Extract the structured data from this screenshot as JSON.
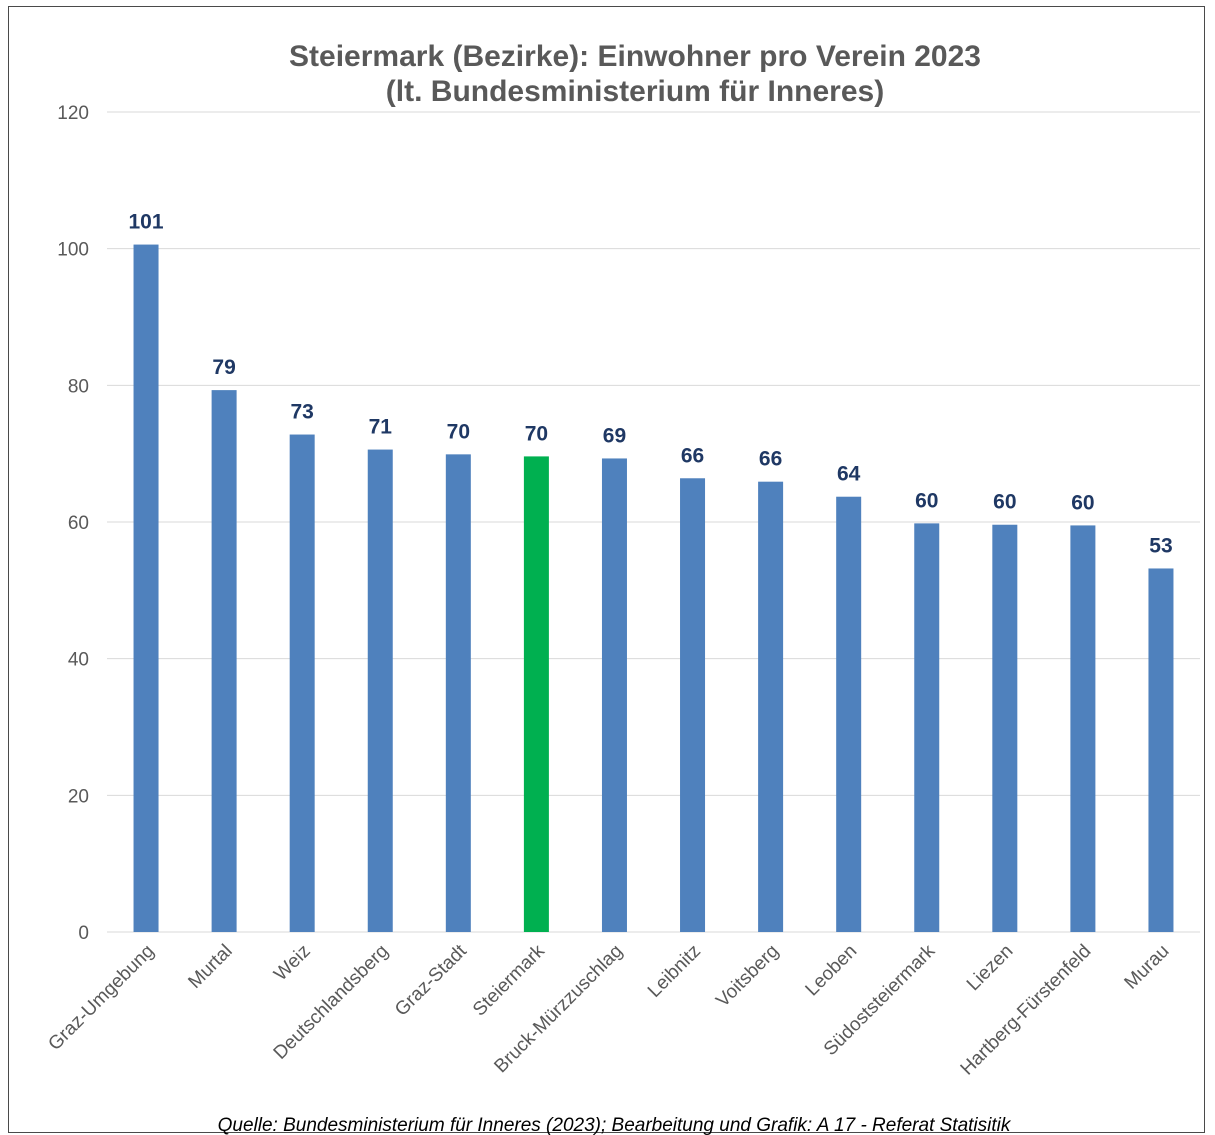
{
  "chart_data": {
    "type": "bar",
    "title": "Steiermark (Bezirke): Einwohner pro Verein 2023",
    "subtitle": "(lt. Bundesministerium für Inneres)",
    "categories": [
      "Graz-Umgebung",
      "Murtal",
      "Weiz",
      "Deutschlandsberg",
      "Graz-Stadt",
      "Steiermark",
      "Bruck-Mürzzuschlag",
      "Leibnitz",
      "Voitsberg",
      "Leoben",
      "Südoststeiermark",
      "Liezen",
      "Hartberg-Fürstenfeld",
      "Murau"
    ],
    "values": [
      100.6,
      79.3,
      72.8,
      70.6,
      69.9,
      69.6,
      69.3,
      66.4,
      65.9,
      63.7,
      59.8,
      59.6,
      59.5,
      53.2
    ],
    "data_labels": [
      "101",
      "79",
      "73",
      "71",
      "70",
      "70",
      "69",
      "66",
      "66",
      "64",
      "60",
      "60",
      "60",
      "53"
    ],
    "highlight_index": 5,
    "ylim": [
      0,
      120
    ],
    "yticks": [
      0,
      20,
      40,
      60,
      80,
      100,
      120
    ],
    "ytick_labels": [
      "0",
      "20",
      "40",
      "60",
      "80",
      "100",
      "120"
    ],
    "grid": true,
    "legend": "none",
    "xlabel": "",
    "ylabel": "",
    "colors": {
      "bar": "#4f81bd",
      "highlight": "#00b050",
      "data_label": "#1f3864",
      "axis_text": "#595959"
    },
    "source": "Quelle: Bundesministerium für Inneres (2023); Bearbeitung und Grafik: A 17 - Referat Statisitik"
  }
}
